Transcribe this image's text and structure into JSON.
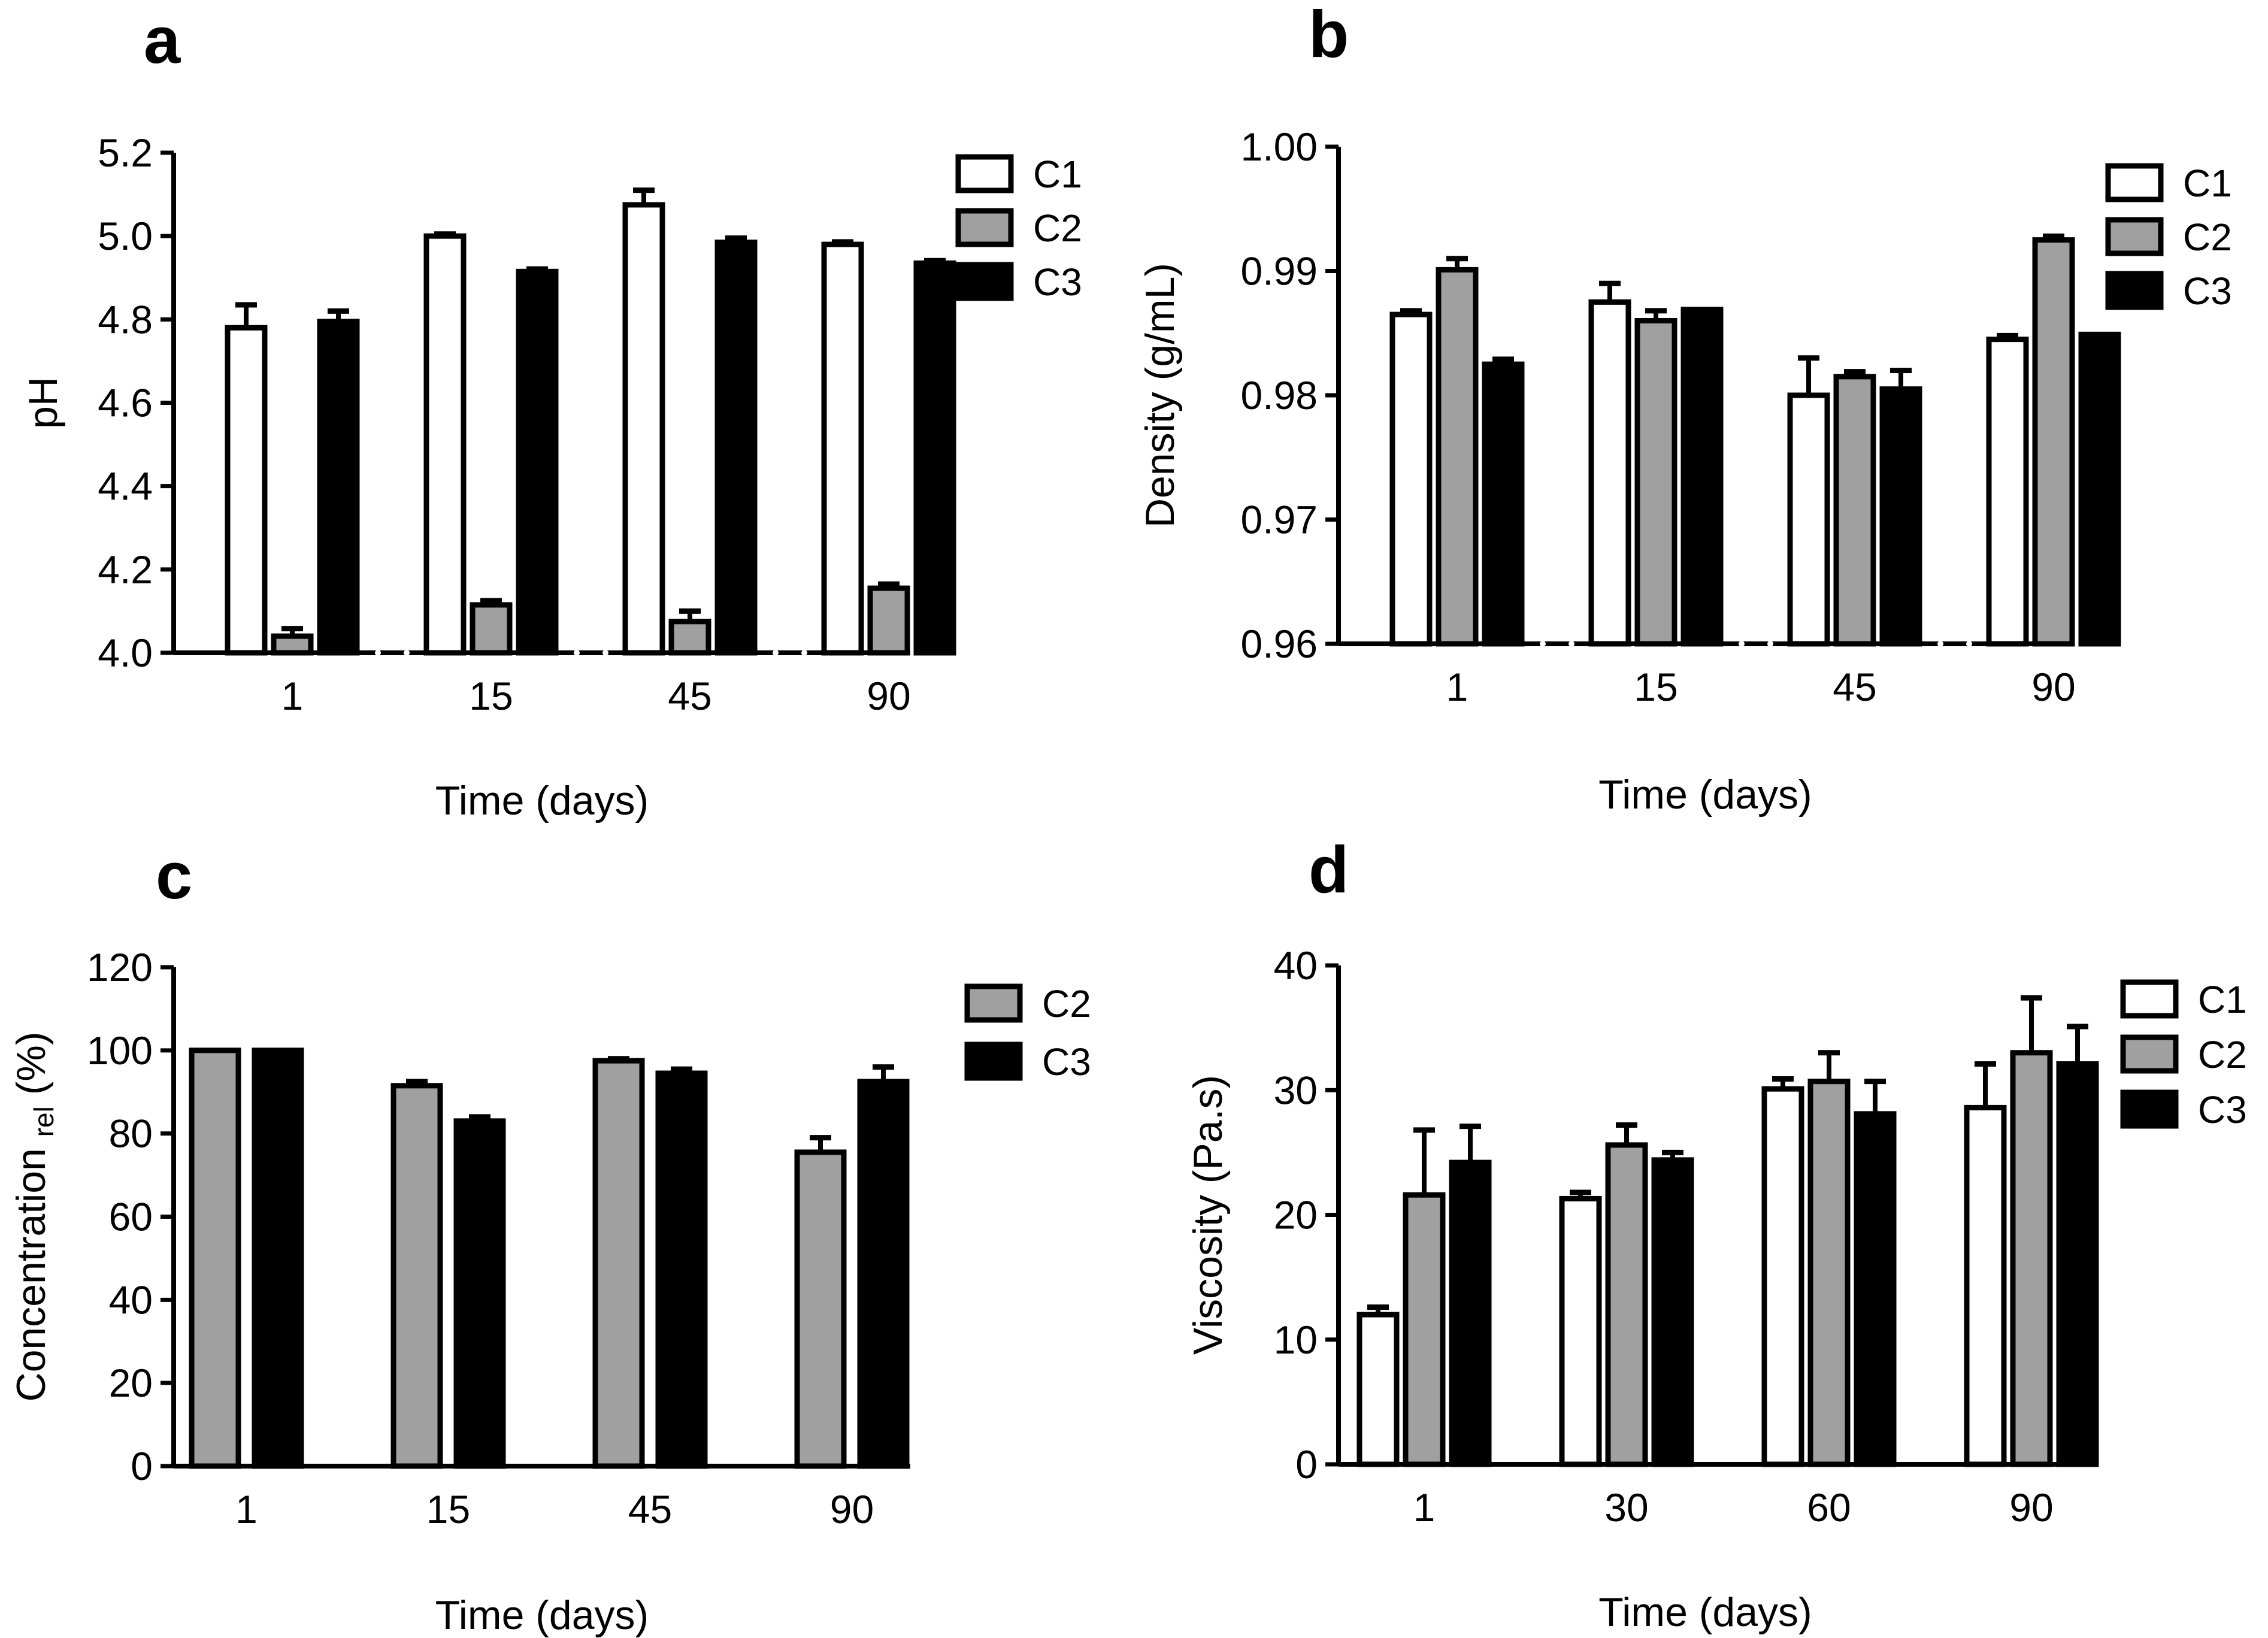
{
  "colors": {
    "C1": "#ffffff",
    "C2": "#a0a0a0",
    "C3": "#000000",
    "stroke": "#000000"
  },
  "chart_data": [
    {
      "type": "bar",
      "panel": "a",
      "categories": [
        "1",
        "15",
        "45",
        "90"
      ],
      "series": [
        {
          "name": "C1",
          "values": [
            4.78,
            5.0,
            5.075,
            4.98
          ],
          "errors": [
            0.055,
            0.005,
            0.035,
            0.006
          ]
        },
        {
          "name": "C2",
          "values": [
            4.04,
            4.115,
            4.075,
            4.155
          ],
          "errors": [
            0.018,
            0.01,
            0.025,
            0.01
          ]
        },
        {
          "name": "C3",
          "values": [
            4.795,
            4.915,
            4.985,
            4.935
          ],
          "errors": [
            0.025,
            0.006,
            0.01,
            0.006
          ]
        }
      ],
      "xlabel": "Time (days)",
      "ylabel": "pH",
      "ylim": [
        4.0,
        5.2
      ],
      "yticks": [
        "4.0",
        "4.2",
        "4.4",
        "4.6",
        "4.8",
        "5.0",
        "5.2"
      ],
      "axis_break": true,
      "legend": [
        "C1",
        "C2",
        "C3"
      ]
    },
    {
      "type": "bar",
      "panel": "b",
      "categories": [
        "1",
        "15",
        "45",
        "90"
      ],
      "series": [
        {
          "name": "C1",
          "values": [
            0.9865,
            0.9875,
            0.98,
            0.9845
          ],
          "errors": [
            0.0003,
            0.0015,
            0.003,
            0.0003
          ]
        },
        {
          "name": "C2",
          "values": [
            0.9901,
            0.986,
            0.9815,
            0.9925
          ],
          "errors": [
            0.0009,
            0.0008,
            0.0004,
            0.0003
          ]
        },
        {
          "name": "C3",
          "values": [
            0.9825,
            0.9869,
            0.9805,
            0.9849
          ],
          "errors": [
            0.0004,
            0.0,
            0.0015,
            0.0
          ]
        }
      ],
      "xlabel": "Time (days)",
      "ylabel": "Density (g/mL)",
      "ylim": [
        0.96,
        1.0
      ],
      "yticks": [
        "0.96",
        "0.97",
        "0.98",
        "0.99",
        "1.00"
      ],
      "axis_break": true,
      "legend": [
        "C1",
        "C2",
        "C3"
      ]
    },
    {
      "type": "bar",
      "panel": "c",
      "categories": [
        "1",
        "15",
        "45",
        "90"
      ],
      "series": [
        {
          "name": "C2",
          "values": [
            100,
            91.5,
            97.5,
            75.5
          ],
          "errors": [
            0,
            1,
            0.5,
            3.5
          ]
        },
        {
          "name": "C3",
          "values": [
            100,
            83,
            94.5,
            92.5
          ],
          "errors": [
            0,
            1,
            1,
            3.5
          ]
        }
      ],
      "xlabel": "Time (days)",
      "ylabel": "Concentration",
      "ylabel_sub": "rel",
      "ylabel_tail": " (%)",
      "ylim": [
        0,
        120
      ],
      "yticks": [
        "0",
        "20",
        "40",
        "60",
        "80",
        "100",
        "120"
      ],
      "axis_break": false,
      "legend": [
        "C2",
        "C3"
      ]
    },
    {
      "type": "bar",
      "panel": "d",
      "categories": [
        "1",
        "30",
        "60",
        "90"
      ],
      "series": [
        {
          "name": "C1",
          "values": [
            12,
            21.3,
            30.1,
            28.6
          ],
          "errors": [
            0.6,
            0.5,
            0.8,
            3.5
          ]
        },
        {
          "name": "C2",
          "values": [
            21.6,
            25.6,
            30.7,
            33
          ],
          "errors": [
            5.2,
            1.6,
            2.3,
            4.4
          ]
        },
        {
          "name": "C3",
          "values": [
            24.2,
            24.4,
            28.1,
            32.1
          ],
          "errors": [
            2.9,
            0.6,
            2.6,
            3
          ]
        }
      ],
      "xlabel": "Time (days)",
      "ylabel": "Viscosity (Pa.s)",
      "ylim": [
        0,
        40
      ],
      "yticks": [
        "0",
        "10",
        "20",
        "30",
        "40"
      ],
      "axis_break": false,
      "legend": [
        "C1",
        "C2",
        "C3"
      ]
    }
  ]
}
